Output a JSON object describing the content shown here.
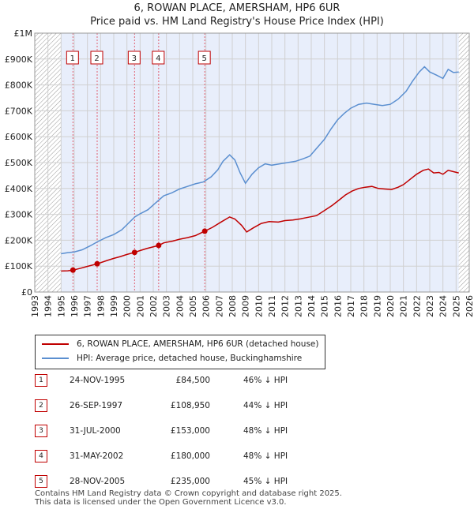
{
  "title_line1": "6, ROWAN PLACE, AMERSHAM, HP6 6UR",
  "title_line2": "Price paid vs. HM Land Registry's House Price Index (HPI)",
  "colors": {
    "property_line": "#c00000",
    "hpi_line": "#5b8fd0",
    "shade": "#e8eefb",
    "hatch": "#999999",
    "grid": "#d0d0d0",
    "marker_line": "#e06070"
  },
  "chart_data": {
    "type": "line",
    "title": "Price paid vs. HM Land Registry's House Price Index (HPI)",
    "xlabel": "",
    "ylabel": "",
    "xlim": [
      1993,
      2026
    ],
    "ylim": [
      0,
      1000000
    ],
    "x_ticks": [
      "1993",
      "1994",
      "1995",
      "1996",
      "1997",
      "1998",
      "1999",
      "2000",
      "2001",
      "2002",
      "2003",
      "2004",
      "2005",
      "2006",
      "2007",
      "2008",
      "2009",
      "2010",
      "2011",
      "2012",
      "2013",
      "2014",
      "2015",
      "2016",
      "2017",
      "2018",
      "2019",
      "2020",
      "2021",
      "2022",
      "2023",
      "2024",
      "2025",
      "2026"
    ],
    "y_ticks": [
      {
        "value": 0,
        "label": "£0"
      },
      {
        "value": 100000,
        "label": "£100K"
      },
      {
        "value": 200000,
        "label": "£200K"
      },
      {
        "value": 300000,
        "label": "£300K"
      },
      {
        "value": 400000,
        "label": "£400K"
      },
      {
        "value": 500000,
        "label": "£500K"
      },
      {
        "value": 600000,
        "label": "£600K"
      },
      {
        "value": 700000,
        "label": "£700K"
      },
      {
        "value": 800000,
        "label": "£800K"
      },
      {
        "value": 900000,
        "label": "£900K"
      },
      {
        "value": 1000000,
        "label": "£1M"
      }
    ],
    "data_start": 1995.0,
    "data_end": 2025.2,
    "series": [
      {
        "name": "6, ROWAN PLACE, AMERSHAM, HP6 6UR (detached house)",
        "points": [
          [
            1995.0,
            81000
          ],
          [
            1995.5,
            82000
          ],
          [
            1995.9,
            84500
          ],
          [
            1996.5,
            92000
          ],
          [
            1997.0,
            99000
          ],
          [
            1997.74,
            108950
          ],
          [
            1998.5,
            122000
          ],
          [
            1999.0,
            130000
          ],
          [
            1999.5,
            137000
          ],
          [
            2000.0,
            145000
          ],
          [
            2000.58,
            153000
          ],
          [
            2001.0,
            160000
          ],
          [
            2001.5,
            168000
          ],
          [
            2002.41,
            180000
          ],
          [
            2002.8,
            190000
          ],
          [
            2003.5,
            197000
          ],
          [
            2004.0,
            204000
          ],
          [
            2004.6,
            210000
          ],
          [
            2005.2,
            218000
          ],
          [
            2005.91,
            235000
          ],
          [
            2006.5,
            250000
          ],
          [
            2007.2,
            272000
          ],
          [
            2007.8,
            290000
          ],
          [
            2008.2,
            282000
          ],
          [
            2008.7,
            258000
          ],
          [
            2009.1,
            232000
          ],
          [
            2009.6,
            248000
          ],
          [
            2010.2,
            265000
          ],
          [
            2010.8,
            272000
          ],
          [
            2011.5,
            270000
          ],
          [
            2012.0,
            276000
          ],
          [
            2012.6,
            278000
          ],
          [
            2013.2,
            283000
          ],
          [
            2013.8,
            289000
          ],
          [
            2014.4,
            295000
          ],
          [
            2015.0,
            315000
          ],
          [
            2015.6,
            335000
          ],
          [
            2016.1,
            355000
          ],
          [
            2016.6,
            375000
          ],
          [
            2017.1,
            390000
          ],
          [
            2017.6,
            400000
          ],
          [
            2018.1,
            405000
          ],
          [
            2018.6,
            408000
          ],
          [
            2019.1,
            400000
          ],
          [
            2019.6,
            398000
          ],
          [
            2020.1,
            396000
          ],
          [
            2020.6,
            405000
          ],
          [
            2021.0,
            415000
          ],
          [
            2021.5,
            435000
          ],
          [
            2022.0,
            455000
          ],
          [
            2022.5,
            470000
          ],
          [
            2022.9,
            475000
          ],
          [
            2023.3,
            460000
          ],
          [
            2023.7,
            462000
          ],
          [
            2024.0,
            455000
          ],
          [
            2024.4,
            470000
          ],
          [
            2024.8,
            465000
          ],
          [
            2025.2,
            460000
          ]
        ]
      },
      {
        "name": "HPI: Average price, detached house, Buckinghamshire",
        "points": [
          [
            1995.0,
            148000
          ],
          [
            1995.5,
            152000
          ],
          [
            1996.0,
            155000
          ],
          [
            1996.6,
            163000
          ],
          [
            1997.2,
            178000
          ],
          [
            1997.8,
            195000
          ],
          [
            1998.4,
            210000
          ],
          [
            1999.0,
            222000
          ],
          [
            1999.6,
            240000
          ],
          [
            2000.1,
            265000
          ],
          [
            2000.6,
            290000
          ],
          [
            2001.0,
            302000
          ],
          [
            2001.6,
            318000
          ],
          [
            2002.2,
            345000
          ],
          [
            2002.8,
            372000
          ],
          [
            2003.4,
            383000
          ],
          [
            2004.0,
            398000
          ],
          [
            2004.6,
            408000
          ],
          [
            2005.2,
            418000
          ],
          [
            2005.8,
            425000
          ],
          [
            2006.4,
            445000
          ],
          [
            2006.9,
            472000
          ],
          [
            2007.3,
            505000
          ],
          [
            2007.8,
            530000
          ],
          [
            2008.2,
            510000
          ],
          [
            2008.6,
            460000
          ],
          [
            2009.0,
            420000
          ],
          [
            2009.5,
            455000
          ],
          [
            2010.0,
            480000
          ],
          [
            2010.5,
            495000
          ],
          [
            2011.0,
            490000
          ],
          [
            2011.6,
            495000
          ],
          [
            2012.2,
            500000
          ],
          [
            2012.8,
            505000
          ],
          [
            2013.4,
            515000
          ],
          [
            2013.9,
            525000
          ],
          [
            2014.4,
            555000
          ],
          [
            2015.0,
            590000
          ],
          [
            2015.5,
            630000
          ],
          [
            2016.0,
            665000
          ],
          [
            2016.5,
            690000
          ],
          [
            2017.0,
            710000
          ],
          [
            2017.6,
            725000
          ],
          [
            2018.2,
            730000
          ],
          [
            2018.8,
            725000
          ],
          [
            2019.4,
            720000
          ],
          [
            2020.0,
            725000
          ],
          [
            2020.6,
            745000
          ],
          [
            2021.2,
            775000
          ],
          [
            2021.7,
            815000
          ],
          [
            2022.2,
            850000
          ],
          [
            2022.6,
            870000
          ],
          [
            2023.0,
            850000
          ],
          [
            2023.5,
            838000
          ],
          [
            2024.0,
            825000
          ],
          [
            2024.4,
            860000
          ],
          [
            2024.8,
            848000
          ],
          [
            2025.2,
            850000
          ]
        ]
      }
    ],
    "transactions": [
      {
        "label": "1",
        "x": 1995.9,
        "date": "24-NOV-1995",
        "price_value": 84500,
        "price": "£84,500",
        "hpi": "46% ↓ HPI"
      },
      {
        "label": "2",
        "x": 1997.74,
        "date": "26-SEP-1997",
        "price_value": 108950,
        "price": "£108,950",
        "hpi": "44% ↓ HPI"
      },
      {
        "label": "3",
        "x": 2000.58,
        "date": "31-JUL-2000",
        "price_value": 153000,
        "price": "£153,000",
        "hpi": "48% ↓ HPI"
      },
      {
        "label": "4",
        "x": 2002.41,
        "date": "31-MAY-2002",
        "price_value": 180000,
        "price": "£180,000",
        "hpi": "48% ↓ HPI"
      },
      {
        "label": "5",
        "x": 2005.91,
        "date": "28-NOV-2005",
        "price_value": 235000,
        "price": "£235,000",
        "hpi": "45% ↓ HPI"
      }
    ]
  },
  "legend": {
    "property": "6, ROWAN PLACE, AMERSHAM, HP6 6UR (detached house)",
    "hpi": "HPI: Average price, detached house, Buckinghamshire"
  },
  "footer": {
    "line1": "Contains HM Land Registry data © Crown copyright and database right 2025.",
    "line2": "This data is licensed under the Open Government Licence v3.0."
  }
}
